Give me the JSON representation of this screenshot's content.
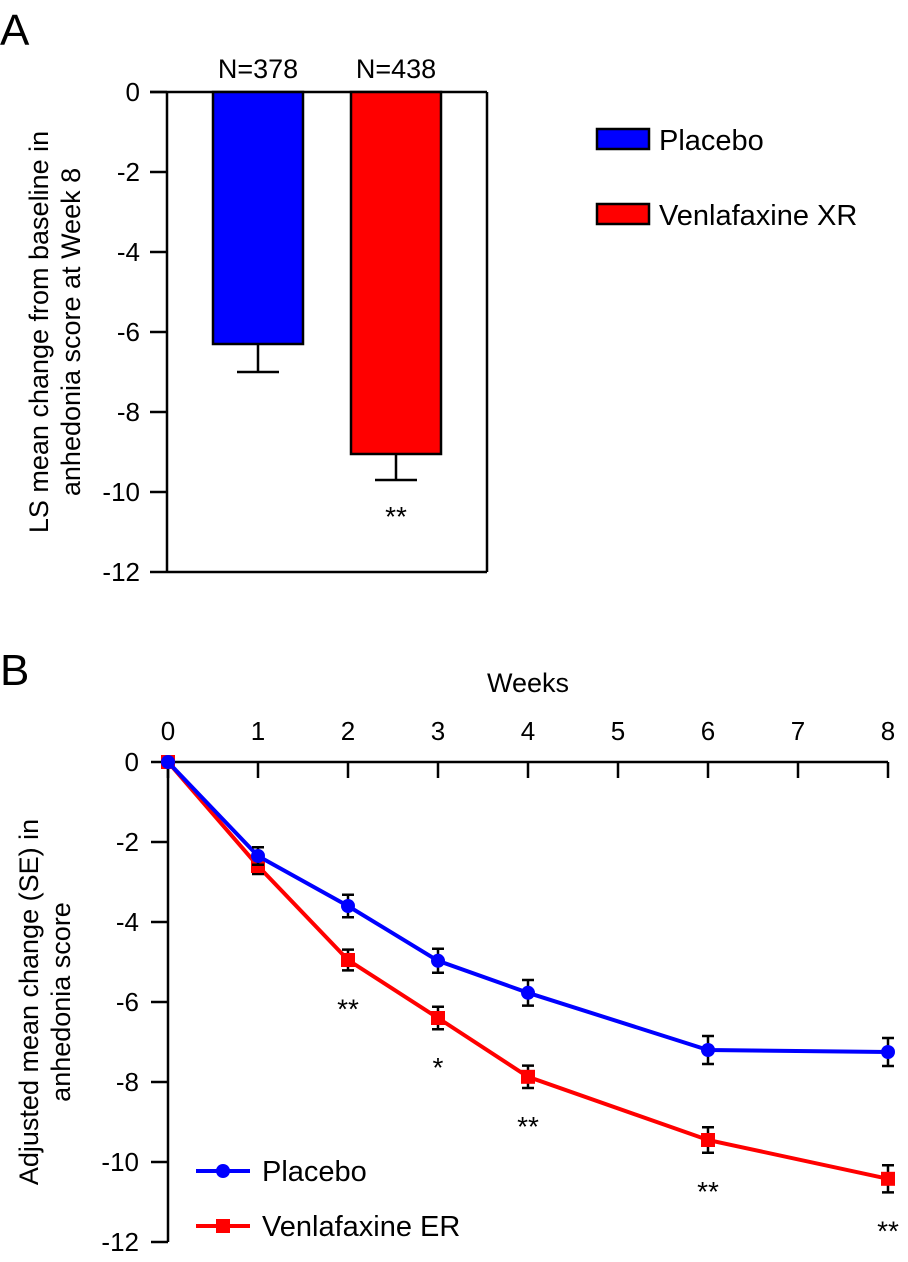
{
  "colors": {
    "placebo": "#0000FF",
    "active": "#FF0000",
    "axis": "#000000"
  },
  "chart_data": [
    {
      "panel": "A",
      "type": "bar",
      "categories": [
        "Placebo",
        "Venlafaxine XR"
      ],
      "values": [
        -6.3,
        -9.05
      ],
      "errors": [
        0.7,
        0.65
      ],
      "n_labels": [
        "N=378",
        "N=438"
      ],
      "significance": [
        "",
        "**"
      ],
      "ylabel": "LS mean change from baseline in anhedonia score at Week 8",
      "ylim": [
        -12,
        0
      ],
      "yticks": [
        0,
        -2,
        -4,
        -6,
        -8,
        -10,
        -12
      ],
      "legend": [
        "Placebo",
        "Venlafaxine XR"
      ],
      "legend_position": "right"
    },
    {
      "panel": "B",
      "type": "line",
      "xlabel": "Weeks",
      "ylabel": "Adjusted mean change (SE) in anhedonia score",
      "xlim": [
        0,
        8
      ],
      "xticks": [
        0,
        1,
        2,
        3,
        4,
        5,
        6,
        7,
        8
      ],
      "ylim": [
        -12,
        0
      ],
      "yticks": [
        0,
        -2,
        -4,
        -6,
        -8,
        -10,
        -12
      ],
      "legend_position": "bottom-left",
      "series": [
        {
          "name": "Placebo",
          "marker": "circle",
          "x": [
            0,
            1,
            2,
            3,
            4,
            6,
            8
          ],
          "y": [
            0,
            -2.35,
            -3.6,
            -4.97,
            -5.77,
            -7.2,
            -7.25
          ],
          "se": [
            0,
            0.22,
            0.28,
            0.3,
            0.32,
            0.35,
            0.35
          ]
        },
        {
          "name": "Venlafaxine ER",
          "marker": "square",
          "x": [
            0,
            1,
            2,
            3,
            4,
            6,
            8
          ],
          "y": [
            0,
            -2.6,
            -4.95,
            -6.4,
            -7.87,
            -9.45,
            -10.42
          ],
          "se": [
            0,
            0.2,
            0.26,
            0.28,
            0.28,
            0.32,
            0.34
          ]
        }
      ],
      "significance": [
        {
          "x": 2,
          "label": "**"
        },
        {
          "x": 3,
          "label": "*"
        },
        {
          "x": 4,
          "label": "**"
        },
        {
          "x": 6,
          "label": "**"
        },
        {
          "x": 8,
          "label": "**"
        }
      ]
    }
  ]
}
